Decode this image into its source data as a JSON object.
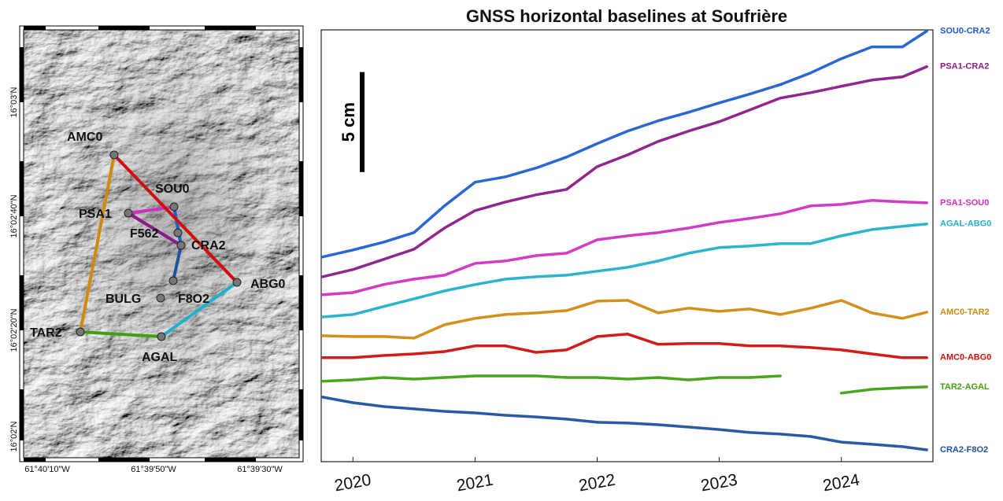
{
  "map": {
    "lat_labels": [
      "16°03'N",
      "16°02'40\"N",
      "16°02'20\"N",
      "16°02'N"
    ],
    "lon_labels": [
      "61°40'10\"W",
      "61°39'50\"W",
      "61°39'30\"W"
    ],
    "stations": [
      "AMC0",
      "SOU0",
      "PSA1",
      "F562",
      "CRA2",
      "ABG0",
      "BULG",
      "F8O2",
      "TAR2",
      "AGAL"
    ]
  },
  "chart_data": {
    "type": "line",
    "title": "GNSS horizontal baselines at Soufrière",
    "scale_bar": {
      "value": 5,
      "label": "5 cm"
    },
    "xlim": [
      2019.74,
      2024.75
    ],
    "xticks": [
      2020,
      2021,
      2022,
      2023,
      2024
    ],
    "ylim": [
      0,
      21.6
    ],
    "x": [
      2019.75,
      2020.0,
      2020.25,
      2020.5,
      2020.75,
      2021.0,
      2021.25,
      2021.5,
      2021.75,
      2022.0,
      2022.25,
      2022.5,
      2022.75,
      2023.0,
      2023.25,
      2023.5,
      2023.75,
      2024.0,
      2024.25,
      2024.5,
      2024.7
    ],
    "series": [
      {
        "name": "SOU0-CRA2",
        "color": "#1f5fd0",
        "values": [
          10.24,
          10.59,
          10.98,
          11.46,
          12.8,
          13.98,
          14.25,
          14.69,
          15.24,
          15.91,
          16.54,
          17.05,
          17.48,
          17.95,
          18.39,
          18.86,
          19.45,
          20.16,
          20.75,
          20.75,
          21.54
        ]
      },
      {
        "name": "PSA1-CRA2",
        "color": "#8b1a8b",
        "values": [
          9.25,
          9.61,
          10.12,
          10.63,
          11.69,
          12.56,
          12.99,
          13.35,
          13.62,
          14.76,
          15.35,
          16.02,
          16.54,
          17.01,
          17.6,
          18.19,
          18.46,
          18.78,
          19.09,
          19.25,
          19.76
        ]
      },
      {
        "name": "PSA1-SOU0",
        "color": "#d030c0",
        "values": [
          8.35,
          8.46,
          8.86,
          9.13,
          9.33,
          9.92,
          10.04,
          10.31,
          10.43,
          11.1,
          11.3,
          11.46,
          11.69,
          11.97,
          12.17,
          12.4,
          12.8,
          12.87,
          13.07,
          12.99,
          12.95
        ]
      },
      {
        "name": "AGAL-ABG0",
        "color": "#20b0c8",
        "values": [
          7.24,
          7.36,
          7.76,
          8.15,
          8.54,
          8.86,
          9.13,
          9.25,
          9.33,
          9.53,
          9.72,
          10.04,
          10.43,
          10.71,
          10.79,
          10.91,
          10.91,
          11.3,
          11.61,
          11.77,
          11.89
        ]
      },
      {
        "name": "AMC0-TAR2",
        "color": "#d08a10",
        "values": [
          6.3,
          6.26,
          6.26,
          6.18,
          6.85,
          7.17,
          7.36,
          7.44,
          7.56,
          8.03,
          8.07,
          7.44,
          7.68,
          7.52,
          7.64,
          7.36,
          7.68,
          8.07,
          7.44,
          7.17,
          7.48
        ]
      },
      {
        "name": "AMC0-ABG0",
        "color": "#d01010",
        "values": [
          5.2,
          5.2,
          5.31,
          5.39,
          5.51,
          5.79,
          5.79,
          5.47,
          5.59,
          6.26,
          6.38,
          5.87,
          5.91,
          5.91,
          5.79,
          5.79,
          5.71,
          5.59,
          5.39,
          5.2,
          5.2
        ]
      },
      {
        "name": "TAR2-AGAL",
        "color": "#40a010",
        "values": [
          4.02,
          4.09,
          4.21,
          4.13,
          4.21,
          4.29,
          4.29,
          4.29,
          4.21,
          4.21,
          4.13,
          4.21,
          4.09,
          4.21,
          4.21,
          4.29,
          null,
          3.43,
          3.62,
          3.7,
          3.74
        ]
      },
      {
        "name": "CRA2-F8O2",
        "color": "#2050a0",
        "values": [
          3.23,
          2.95,
          2.76,
          2.64,
          2.52,
          2.44,
          2.32,
          2.24,
          2.13,
          1.97,
          1.93,
          1.85,
          1.73,
          1.61,
          1.46,
          1.38,
          1.26,
          0.98,
          0.87,
          0.75,
          0.59
        ]
      }
    ]
  }
}
